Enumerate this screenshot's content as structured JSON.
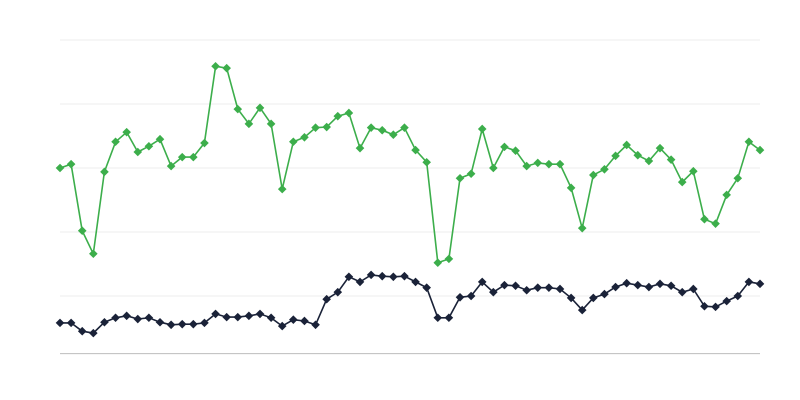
{
  "chart_data": {
    "type": "line",
    "categories": [
      null,
      null,
      null,
      null,
      null,
      null,
      null,
      null,
      null,
      null,
      null,
      null,
      null,
      null,
      null,
      null,
      null,
      null,
      null,
      null,
      null,
      null,
      null,
      null,
      null,
      null,
      null,
      null,
      null,
      null,
      null,
      null,
      null,
      null,
      null,
      null,
      null,
      null,
      null,
      null,
      null,
      null,
      null,
      null,
      null,
      null,
      null,
      null,
      null,
      null,
      null,
      null,
      null,
      null,
      null,
      null,
      null,
      null,
      null,
      null,
      null,
      null,
      null,
      null
    ],
    "series": [
      {
        "color": "#3cae4b",
        "values": [
          3.0,
          3.06,
          2.02,
          1.66,
          2.94,
          3.41,
          3.56,
          3.25,
          3.34,
          3.45,
          3.03,
          3.17,
          3.17,
          3.39,
          4.59,
          4.56,
          3.92,
          3.69,
          3.94,
          3.69,
          2.67,
          3.41,
          3.48,
          3.63,
          3.64,
          3.81,
          3.86,
          3.31,
          3.63,
          3.59,
          3.52,
          3.63,
          3.28,
          3.09,
          1.52,
          1.58,
          2.84,
          2.91,
          3.61,
          3.0,
          3.33,
          3.27,
          3.03,
          3.08,
          3.06,
          3.06,
          2.69,
          2.06,
          2.89,
          2.98,
          3.19,
          3.36,
          3.2,
          3.11,
          3.31,
          3.13,
          2.78,
          2.95,
          2.2,
          2.13,
          2.58,
          2.84,
          3.41,
          3.28
        ]
      },
      {
        "color": "#1a2238",
        "values": [
          0.58,
          0.58,
          0.45,
          0.42,
          0.59,
          0.66,
          0.69,
          0.64,
          0.66,
          0.59,
          0.55,
          0.56,
          0.56,
          0.58,
          0.72,
          0.67,
          0.67,
          0.69,
          0.72,
          0.66,
          0.53,
          0.63,
          0.61,
          0.55,
          0.95,
          1.06,
          1.3,
          1.22,
          1.33,
          1.31,
          1.3,
          1.31,
          1.22,
          1.13,
          0.66,
          0.66,
          0.98,
          1.0,
          1.22,
          1.06,
          1.17,
          1.16,
          1.09,
          1.13,
          1.13,
          1.11,
          0.97,
          0.78,
          0.97,
          1.03,
          1.14,
          1.2,
          1.17,
          1.14,
          1.19,
          1.16,
          1.06,
          1.11,
          0.84,
          0.83,
          0.92,
          1.0,
          1.22,
          1.19
        ]
      }
    ],
    "ylim": [
      0.1,
      5
    ],
    "yticks": [
      1,
      2,
      3,
      4,
      5
    ],
    "grid": true
  }
}
